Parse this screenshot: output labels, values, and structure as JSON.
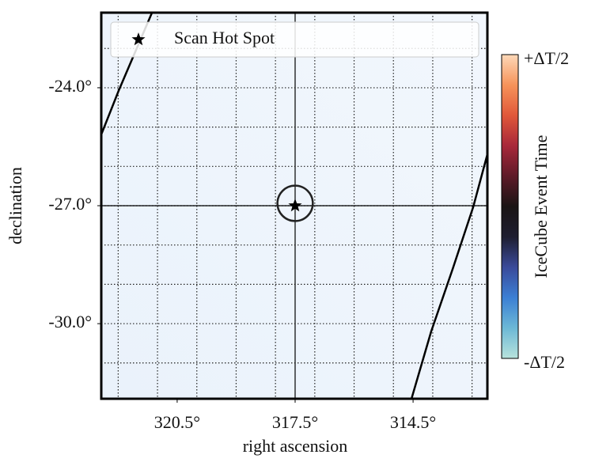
{
  "chart_data": {
    "type": "scatter",
    "xlabel": "right ascension",
    "ylabel": "declination",
    "xlim": [
      322.43,
      312.61
    ],
    "ylim": [
      -31.91,
      -22.09
    ],
    "xticks": [
      {
        "value": 320.5,
        "label": "320.5°"
      },
      {
        "value": 317.5,
        "label": "317.5°"
      },
      {
        "value": 314.5,
        "label": "314.5°"
      }
    ],
    "yticks": [
      {
        "value": -24.0,
        "label": "-24.0°"
      },
      {
        "value": -27.0,
        "label": "-27.0°"
      },
      {
        "value": -30.0,
        "label": "-30.0°"
      }
    ],
    "xgrid": [
      322,
      321,
      320,
      319,
      318,
      317,
      316,
      315,
      314,
      313
    ],
    "ygrid": [
      -23,
      -24,
      -25,
      -26,
      -27,
      -28,
      -29,
      -30,
      -31
    ],
    "grid": true,
    "legend": "upper",
    "series": [
      {
        "name": "Scan Hot Spot",
        "color": "#000000",
        "x": [
          317.5
        ],
        "values": [
          -27.0
        ],
        "radius": [
          0.45
        ]
      }
    ],
    "lines": [
      {
        "color": "#000000",
        "x": [
          321.14,
          321.99,
          322.43
        ],
        "y": [
          -22.09,
          -24.08,
          -25.19
        ]
      },
      {
        "color": "#000000",
        "x": [
          312.61,
          312.97,
          313.49,
          314.04,
          314.54
        ],
        "y": [
          -25.69,
          -27.03,
          -28.6,
          -30.2,
          -31.91
        ]
      }
    ],
    "colorbar": {
      "label": "IceCube Event Time",
      "top": "+ΔT/2",
      "bottom": "-ΔT/2",
      "colormap": [
        "#b8e3dc",
        "#6cb8d6",
        "#3c7fd4",
        "#3a4a9a",
        "#1e1e30",
        "#1a1414",
        "#5e1a28",
        "#a8283a",
        "#e0583a",
        "#f6935a",
        "#fdd8b8"
      ]
    }
  }
}
